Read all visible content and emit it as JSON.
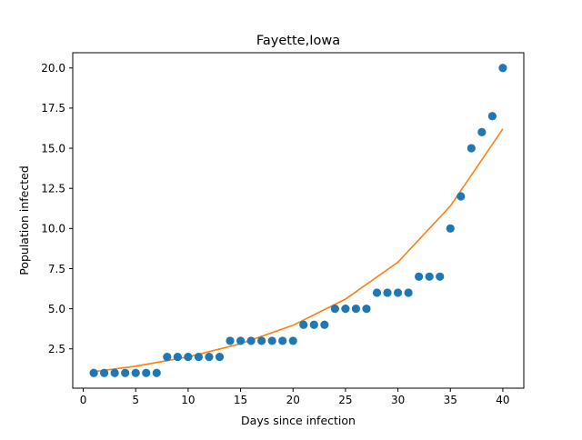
{
  "chart_data": {
    "type": "scatter",
    "title": "Fayette,Iowa",
    "xlabel": "Days since infection",
    "ylabel": "Population infected",
    "xlim": [
      -1,
      42
    ],
    "ylim": [
      0.05,
      20.95
    ],
    "xticks": [
      0,
      5,
      10,
      15,
      20,
      25,
      30,
      35,
      40
    ],
    "xtick_labels": [
      "0",
      "5",
      "10",
      "15",
      "20",
      "25",
      "30",
      "35",
      "40"
    ],
    "yticks": [
      2.5,
      5.0,
      7.5,
      10.0,
      12.5,
      15.0,
      17.5,
      20.0
    ],
    "ytick_labels": [
      "2.5",
      "5.0",
      "7.5",
      "10.0",
      "12.5",
      "15.0",
      "17.5",
      "20.0"
    ],
    "grid": false,
    "legend": "none",
    "colors": {
      "points": "#1f77b4",
      "fit": "#ff7f0e"
    },
    "series": [
      {
        "kind": "scatter",
        "x": [
          1,
          2,
          3,
          4,
          5,
          6,
          7,
          8,
          9,
          10,
          11,
          12,
          13,
          14,
          15,
          16,
          17,
          18,
          19,
          20,
          21,
          22,
          23,
          24,
          25,
          26,
          27,
          28,
          29,
          30,
          31,
          32,
          33,
          34,
          35,
          36,
          37,
          38,
          39,
          40
        ],
        "y": [
          1,
          1,
          1,
          1,
          1,
          1,
          1,
          2,
          2,
          2,
          2,
          2,
          2,
          3,
          3,
          3,
          3,
          3,
          3,
          3,
          4,
          4,
          4,
          5,
          5,
          5,
          5,
          6,
          6,
          6,
          6,
          7,
          7,
          7,
          10,
          12,
          15,
          16,
          17,
          20
        ]
      },
      {
        "kind": "line",
        "x": [
          1,
          5,
          10,
          15,
          20,
          25,
          30,
          35,
          40
        ],
        "y": [
          1.08,
          1.42,
          2.0,
          2.82,
          3.97,
          5.6,
          7.9,
          11.4,
          16.2
        ]
      }
    ]
  }
}
